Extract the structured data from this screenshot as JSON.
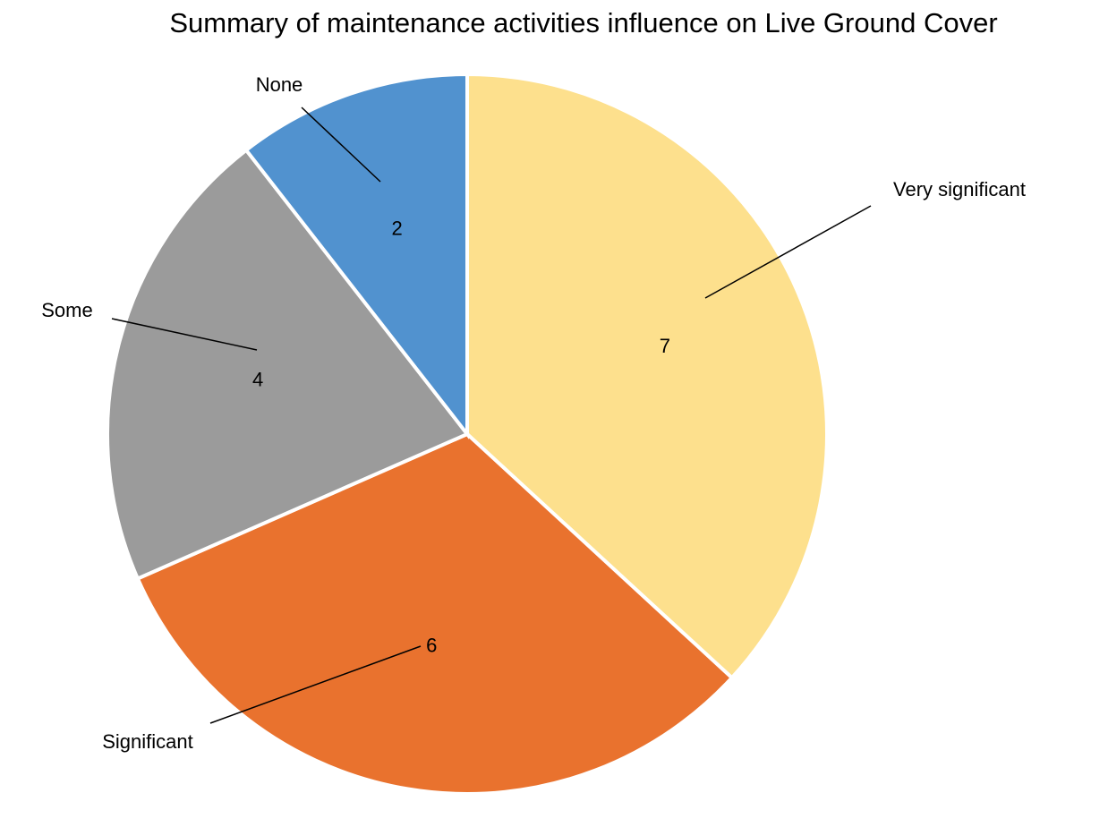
{
  "chart_data": {
    "type": "pie",
    "title": "Summary of maintenance activities influence on Live Ground Cover",
    "categories": [
      "Very significant",
      "Significant",
      "Some",
      "None"
    ],
    "values": [
      7,
      6,
      4,
      2
    ],
    "colors": [
      "#fde08d",
      "#e9722e",
      "#9b9b9b",
      "#5192cf"
    ]
  }
}
